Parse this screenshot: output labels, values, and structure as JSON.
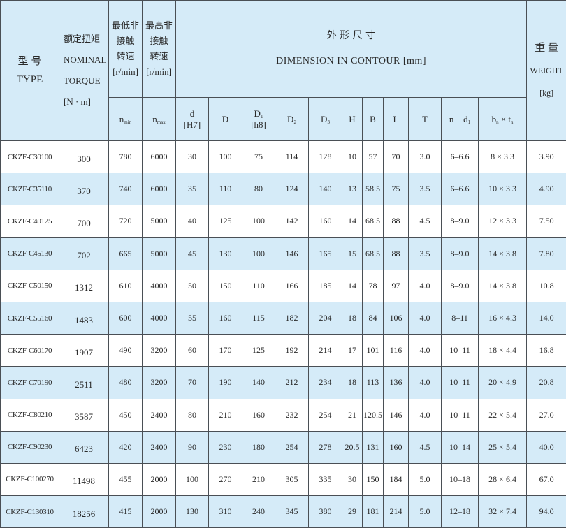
{
  "header": {
    "type_cn": "型 号",
    "type_en": "TYPE",
    "torque_cn": "额定扭矩",
    "torque_en1": "NOMINAL",
    "torque_en2": "TORQUE",
    "torque_unit": "[N · m]",
    "nmin_cn1": "最低非",
    "nmin_cn2": "接触",
    "nmin_cn3": "转速",
    "nmin_unit": "[r/min]",
    "nmax_cn1": "最高非",
    "nmax_cn2": "接触",
    "nmax_cn3": "转速",
    "nmax_unit": "[r/min]",
    "dim_cn": "外 形 尺 寸",
    "dim_en": "DIMENSION IN CONTOUR [mm]",
    "weight_cn": "重 量",
    "weight_en": "WEIGHT",
    "weight_unit": "[kg]",
    "sub_columns": [
      {
        "parts": [
          {
            "t": "n"
          },
          {
            "s": "min"
          }
        ]
      },
      {
        "parts": [
          {
            "t": "n"
          },
          {
            "s": "max"
          }
        ]
      },
      {
        "parts": [
          {
            "t": "d"
          },
          {
            "br": "[H7]"
          }
        ]
      },
      {
        "parts": [
          {
            "t": "D"
          }
        ]
      },
      {
        "parts": [
          {
            "t": "D"
          },
          {
            "s": "1"
          },
          {
            "br": "[h8]"
          }
        ]
      },
      {
        "parts": [
          {
            "t": "D"
          },
          {
            "s": "2"
          }
        ]
      },
      {
        "parts": [
          {
            "t": "D"
          },
          {
            "s": "3"
          }
        ]
      },
      {
        "parts": [
          {
            "t": "H"
          }
        ]
      },
      {
        "parts": [
          {
            "t": "B"
          }
        ]
      },
      {
        "parts": [
          {
            "t": "L"
          }
        ]
      },
      {
        "parts": [
          {
            "t": "T"
          }
        ]
      },
      {
        "parts": [
          {
            "t": "n − d"
          },
          {
            "s": "1"
          }
        ]
      },
      {
        "parts": [
          {
            "t": "b"
          },
          {
            "s": "n"
          },
          {
            "t": " × t"
          },
          {
            "s": "n"
          }
        ]
      }
    ]
  },
  "rows": [
    [
      "CKZF-C30100",
      "300",
      "780",
      "6000",
      "30",
      "100",
      "75",
      "114",
      "128",
      "10",
      "57",
      "70",
      "3.0",
      "6–6.6",
      "8 × 3.3",
      "3.90"
    ],
    [
      "CKZF-C35110",
      "370",
      "740",
      "6000",
      "35",
      "110",
      "80",
      "124",
      "140",
      "13",
      "58.5",
      "75",
      "3.5",
      "6–6.6",
      "10 × 3.3",
      "4.90"
    ],
    [
      "CKZF-C40125",
      "700",
      "720",
      "5000",
      "40",
      "125",
      "100",
      "142",
      "160",
      "14",
      "68.5",
      "88",
      "4.5",
      "8–9.0",
      "12 × 3.3",
      "7.50"
    ],
    [
      "CKZF-C45130",
      "702",
      "665",
      "5000",
      "45",
      "130",
      "100",
      "146",
      "165",
      "15",
      "68.5",
      "88",
      "3.5",
      "8–9.0",
      "14 × 3.8",
      "7.80"
    ],
    [
      "CKZF-C50150",
      "1312",
      "610",
      "4000",
      "50",
      "150",
      "110",
      "166",
      "185",
      "14",
      "78",
      "97",
      "4.0",
      "8–9.0",
      "14 × 3.8",
      "10.8"
    ],
    [
      "CKZF-C55160",
      "1483",
      "600",
      "4000",
      "55",
      "160",
      "115",
      "182",
      "204",
      "18",
      "84",
      "106",
      "4.0",
      "8–11",
      "16 × 4.3",
      "14.0"
    ],
    [
      "CKZF-C60170",
      "1907",
      "490",
      "3200",
      "60",
      "170",
      "125",
      "192",
      "214",
      "17",
      "101",
      "116",
      "4.0",
      "10–11",
      "18 × 4.4",
      "16.8"
    ],
    [
      "CKZF-C70190",
      "2511",
      "480",
      "3200",
      "70",
      "190",
      "140",
      "212",
      "234",
      "18",
      "113",
      "136",
      "4.0",
      "10–11",
      "20 × 4.9",
      "20.8"
    ],
    [
      "CKZF-C80210",
      "3587",
      "450",
      "2400",
      "80",
      "210",
      "160",
      "232",
      "254",
      "21",
      "120.5",
      "146",
      "4.0",
      "10–11",
      "22 × 5.4",
      "27.0"
    ],
    [
      "CKZF-C90230",
      "6423",
      "420",
      "2400",
      "90",
      "230",
      "180",
      "254",
      "278",
      "20.5",
      "131",
      "160",
      "4.5",
      "10–14",
      "25 × 5.4",
      "40.0"
    ],
    [
      "CKZF-C100270",
      "11498",
      "455",
      "2000",
      "100",
      "270",
      "210",
      "305",
      "335",
      "30",
      "150",
      "184",
      "5.0",
      "10–18",
      "28 × 6.4",
      "67.0"
    ],
    [
      "CKZF-C130310",
      "18256",
      "415",
      "2000",
      "130",
      "310",
      "240",
      "345",
      "380",
      "29",
      "181",
      "214",
      "5.0",
      "12–18",
      "32 × 7.4",
      "94.0"
    ]
  ]
}
